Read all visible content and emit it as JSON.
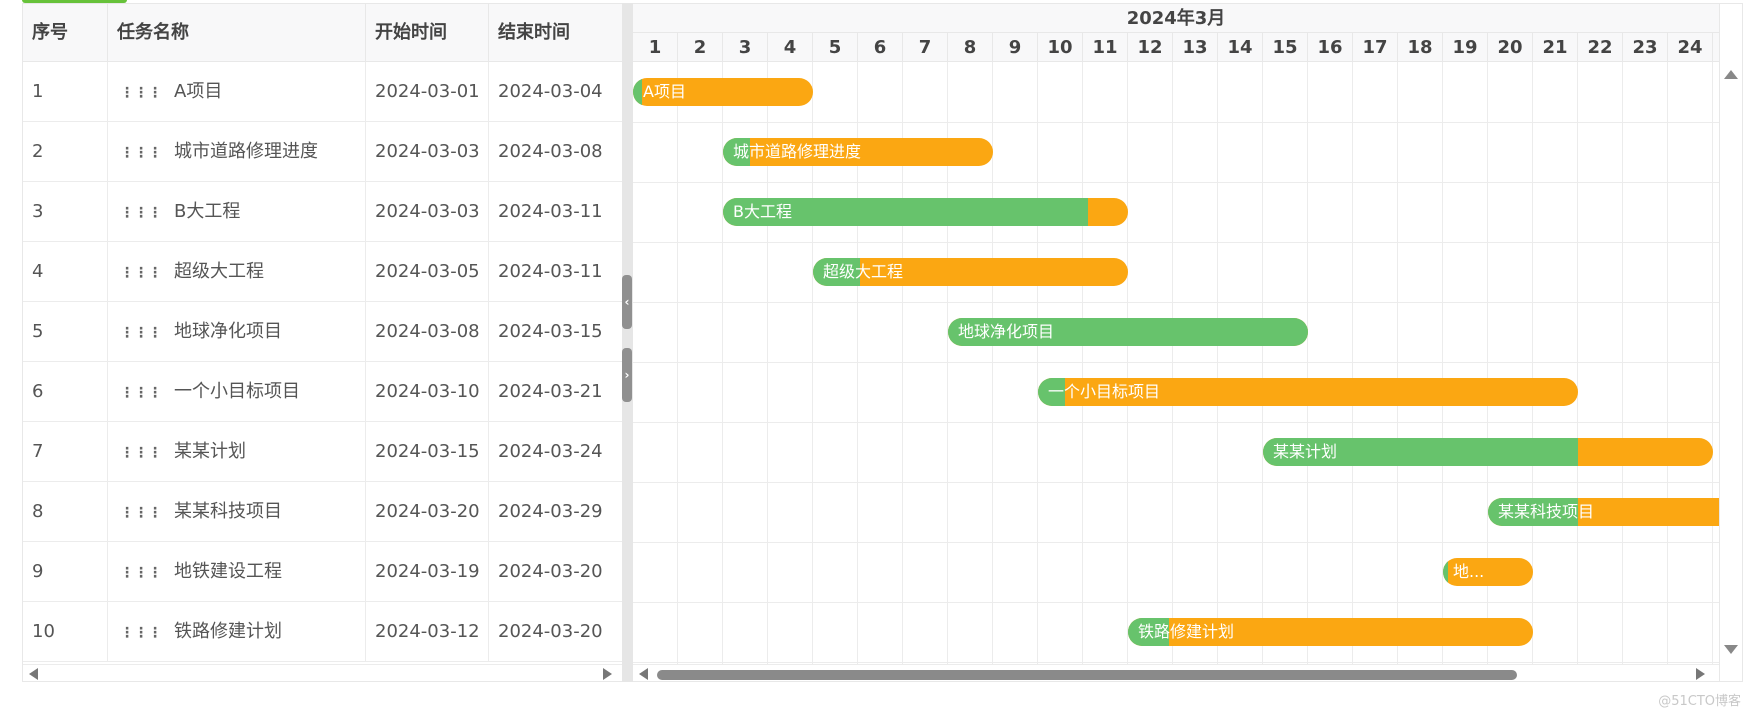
{
  "columns": {
    "index": "序号",
    "name": "任务名称",
    "start": "开始时间",
    "end": "结束时间"
  },
  "month_label": "2024年3月",
  "days": [
    "1",
    "2",
    "3",
    "4",
    "5",
    "6",
    "7",
    "8",
    "9",
    "10",
    "11",
    "12",
    "13",
    "14",
    "15",
    "16",
    "17",
    "18",
    "19",
    "20",
    "21",
    "22",
    "23",
    "24"
  ],
  "drag_icon": "drag-handle-icon",
  "tasks": [
    {
      "index": "1",
      "name": "A项目",
      "start": "2024-03-01",
      "end": "2024-03-04",
      "bar_label": "A项目",
      "progress": 0.05
    },
    {
      "index": "2",
      "name": "城市道路修理进度",
      "start": "2024-03-03",
      "end": "2024-03-08",
      "bar_label": "城市道路修理进度",
      "progress": 0.1
    },
    {
      "index": "3",
      "name": "B大工程",
      "start": "2024-03-03",
      "end": "2024-03-11",
      "bar_label": "B大工程",
      "progress": 0.9
    },
    {
      "index": "4",
      "name": "超级大工程",
      "start": "2024-03-05",
      "end": "2024-03-11",
      "bar_label": "超级大工程",
      "progress": 0.15
    },
    {
      "index": "5",
      "name": "地球净化项目",
      "start": "2024-03-08",
      "end": "2024-03-15",
      "bar_label": "地球净化项目",
      "progress": 1.0
    },
    {
      "index": "6",
      "name": "一个小目标项目",
      "start": "2024-03-10",
      "end": "2024-03-21",
      "bar_label": "一个小目标项目",
      "progress": 0.05
    },
    {
      "index": "7",
      "name": "某某计划",
      "start": "2024-03-15",
      "end": "2024-03-24",
      "bar_label": "某某计划",
      "progress": 0.7
    },
    {
      "index": "8",
      "name": "某某科技项目",
      "start": "2024-03-20",
      "end": "2024-03-29",
      "bar_label": "某某科技项目",
      "progress": 0.2
    },
    {
      "index": "9",
      "name": "地铁建设工程",
      "start": "2024-03-19",
      "end": "2024-03-20",
      "bar_label": "地...",
      "progress": 0.05
    },
    {
      "index": "10",
      "name": "铁路修建计划",
      "start": "2024-03-12",
      "end": "2024-03-20",
      "bar_label": "铁路修建计划",
      "progress": 0.1
    }
  ],
  "colors": {
    "bar": "#fba712",
    "progress": "#67c36c",
    "grid": "#ececec",
    "header_bg": "#f8f8f9"
  },
  "split_buttons": {
    "collapse": "‹",
    "expand": "›"
  },
  "watermark": "@51CTO博客"
}
